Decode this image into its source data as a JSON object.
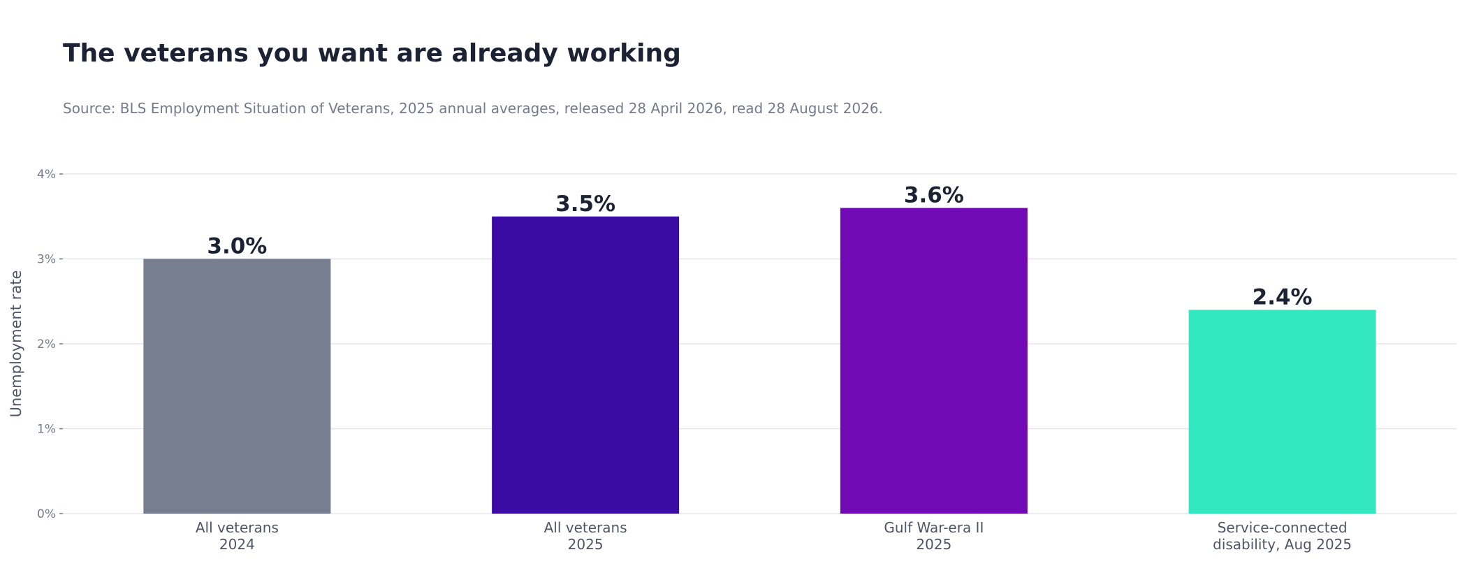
{
  "title": "The veterans you want are already working",
  "subtitle": "Source: BLS Employment Situation of Veterans, 2025 annual averages, released 28 April 2026, read 28 August 2026.",
  "chart_data": {
    "type": "bar",
    "ylabel": "Unemployment rate",
    "xlabel": "",
    "ylim": [
      0,
      4
    ],
    "yticks": [
      0,
      1,
      2,
      3,
      4
    ],
    "ytick_labels": [
      "0%",
      "1%",
      "2%",
      "3%",
      "4%"
    ],
    "grid": "horizontal",
    "categories": [
      [
        "All veterans",
        "2024"
      ],
      [
        "All veterans",
        "2025"
      ],
      [
        "Gulf War-era II",
        "2025"
      ],
      [
        "Service-connected",
        "disability, Aug 2025"
      ]
    ],
    "values": [
      3.0,
      3.5,
      3.6,
      2.4
    ],
    "value_labels": [
      "3.0%",
      "3.5%",
      "3.6%",
      "2.4%"
    ],
    "colors": [
      "#777e8f",
      "#3a0ca3",
      "#7209b7",
      "#33e8c0"
    ]
  }
}
